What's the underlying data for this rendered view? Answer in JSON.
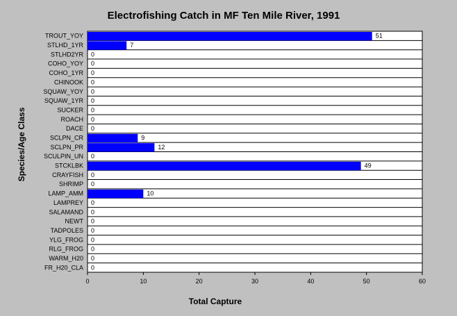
{
  "chart_data": {
    "type": "bar",
    "orientation": "horizontal",
    "title": "Electrofishing Catch in MF Ten Mile River, 1991",
    "xlabel": "Total Capture",
    "ylabel": "Species/Age Class",
    "xlim": [
      0,
      60
    ],
    "xticks": [
      0,
      10,
      20,
      30,
      40,
      50,
      60
    ],
    "grid": "horizontal row lines",
    "bar_color": "#0000ff",
    "background": "#c0c0c0",
    "categories": [
      "TROUT_YOY",
      "STLHD_1YR",
      "STLHD2YR",
      "COHO_YOY",
      "COHO_1YR",
      "CHINOOK",
      "SQUAW_YOY",
      "SQUAW_1YR",
      "SUCKER",
      "ROACH",
      "DACE",
      "SCLPN_CR",
      "SCLPN_PR",
      "SCULPIN_UN",
      "STCKLBK",
      "CRAYFISH",
      "SHRIMP",
      "LAMP_AMM",
      "LAMPREY",
      "SALAMAND",
      "NEWT",
      "TADPOLES",
      "YLG_FROG",
      "RLG_FROG",
      "WARM_H20",
      "FR_H20_CLA"
    ],
    "values": [
      51,
      7,
      0,
      0,
      0,
      0,
      0,
      0,
      0,
      0,
      0,
      9,
      12,
      0,
      49,
      0,
      0,
      10,
      0,
      0,
      0,
      0,
      0,
      0,
      0,
      0
    ]
  }
}
